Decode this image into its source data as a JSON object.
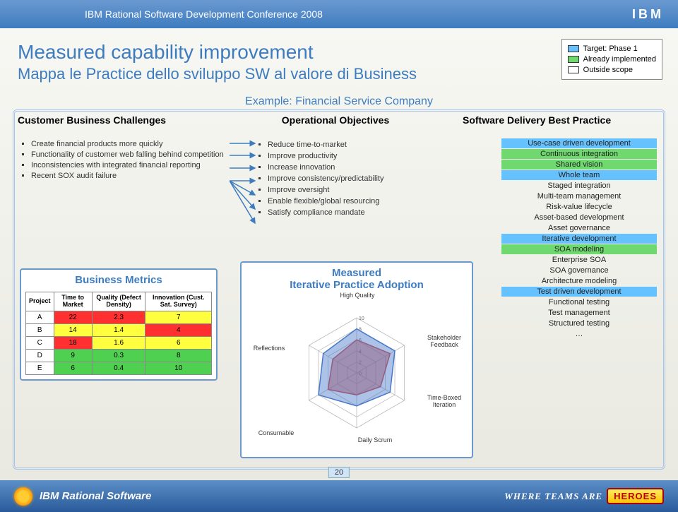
{
  "header": {
    "conference": "IBM Rational Software Development Conference 2008",
    "ibm": "IBM"
  },
  "title": {
    "line1": "Measured capability improvement",
    "line2": "Mappa le Practice dello sviluppo SW al valore di Business",
    "example": "Example: Financial Service Company"
  },
  "legend": {
    "items": [
      {
        "color": "#66c2ff",
        "label": "Target: Phase 1"
      },
      {
        "color": "#6fd96f",
        "label": "Already implemented"
      },
      {
        "color": "#ffffff",
        "label": "Outside scope"
      }
    ]
  },
  "columns": {
    "c1": "Customer Business Challenges",
    "c2": "Operational Objectives",
    "c3": "Software Delivery Best Practice"
  },
  "left_bullets": [
    "Create financial products more quickly",
    "Functionality of customer web falling behind competition",
    "Inconsistencies with integrated financial reporting",
    "Recent SOX audit failure"
  ],
  "mid_bullets": [
    "Reduce time-to-market",
    "Improve productivity",
    "Increase innovation",
    "Improve consistency/predictability",
    "Improve oversight",
    "Enable flexible/global resourcing",
    "Satisfy compliance mandate"
  ],
  "right_practices": [
    {
      "label": "Use-case driven development",
      "hl": "blue"
    },
    {
      "label": "Continuous integration",
      "hl": "green"
    },
    {
      "label": "Shared vision",
      "hl": "green"
    },
    {
      "label": "Whole team",
      "hl": "blue"
    },
    {
      "label": "Staged integration",
      "hl": ""
    },
    {
      "label": "Multi-team management",
      "hl": ""
    },
    {
      "label": "Risk-value lifecycle",
      "hl": ""
    },
    {
      "label": "Asset-based development",
      "hl": ""
    },
    {
      "label": "Asset governance",
      "hl": ""
    },
    {
      "label": "Iterative development",
      "hl": "blue"
    },
    {
      "label": "SOA modeling",
      "hl": "green"
    },
    {
      "label": "Enterprise SOA",
      "hl": ""
    },
    {
      "label": "SOA governance",
      "hl": ""
    },
    {
      "label": "Architecture modeling",
      "hl": ""
    },
    {
      "label": "Test driven development",
      "hl": "blue"
    },
    {
      "label": "Functional testing",
      "hl": ""
    },
    {
      "label": "Test management",
      "hl": ""
    },
    {
      "label": "Structured testing",
      "hl": ""
    },
    {
      "label": "…",
      "hl": ""
    }
  ],
  "metrics": {
    "title": "Business Metrics",
    "headers": [
      "Project",
      "Time to Market",
      "Quality (Defect Density)",
      "Innovation (Cust. Sat. Survey)"
    ],
    "rows": [
      {
        "cells": [
          "A",
          "22",
          "2.3",
          "7"
        ],
        "colors": [
          "#ffffff",
          "#ff3030",
          "#ff3030",
          "#ffff40"
        ]
      },
      {
        "cells": [
          "B",
          "14",
          "1.4",
          "4"
        ],
        "colors": [
          "#ffffff",
          "#ffff40",
          "#ffff40",
          "#ff3030"
        ]
      },
      {
        "cells": [
          "C",
          "18",
          "1.6",
          "6"
        ],
        "colors": [
          "#ffffff",
          "#ff3030",
          "#ffff40",
          "#ffff40"
        ]
      },
      {
        "cells": [
          "D",
          "9",
          "0.3",
          "8"
        ],
        "colors": [
          "#ffffff",
          "#50d050",
          "#50d050",
          "#50d050"
        ]
      },
      {
        "cells": [
          "E",
          "6",
          "0.4",
          "10"
        ],
        "colors": [
          "#ffffff",
          "#50d050",
          "#50d050",
          "#50d050"
        ]
      }
    ]
  },
  "radar": {
    "title1": "Measured",
    "title2": "Iterative Practice Adoption",
    "axes": [
      "High Quality",
      "Stakeholder Feedback",
      "Time-Boxed Iteration",
      "Daily Scrum",
      "Consumable",
      "Reflections"
    ],
    "rings": [
      10,
      8,
      6,
      4,
      2,
      0
    ],
    "series": [
      {
        "color": "#d04848",
        "fill": "rgba(208,72,72,0.5)",
        "values": [
          6,
          7,
          5,
          4,
          6,
          5
        ]
      },
      {
        "color": "#4878c8",
        "fill": "rgba(72,120,200,0.45)",
        "values": [
          8,
          8,
          7,
          6,
          8,
          7
        ]
      }
    ],
    "max": 10
  },
  "footer": {
    "brand": "IBM Rational Software",
    "page": "20",
    "tag_where": "WHERE TEAMS ARE",
    "tag_hero": "HEROES"
  }
}
